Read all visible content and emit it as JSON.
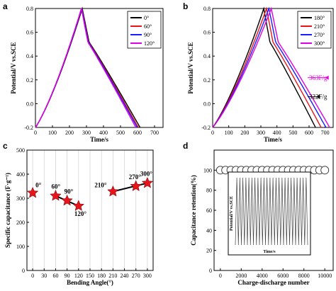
{
  "chart_data": [
    {
      "panel": "a",
      "type": "line",
      "xlabel": "Time/s",
      "ylabel": "Potential/V vs.SCE",
      "xlim": [
        0,
        750
      ],
      "ylim": [
        -0.2,
        0.8
      ],
      "xticks": [
        "0",
        "100",
        "200",
        "300",
        "400",
        "500",
        "600",
        "700"
      ],
      "yticks": [
        "-0.2",
        "0.0",
        "0.2",
        "0.4",
        "0.6",
        "0.8"
      ],
      "legend_position": "top-right",
      "series": [
        {
          "name": "0°",
          "color": "#000000",
          "peak": 275,
          "end": 615
        },
        {
          "name": "60°",
          "color": "#e8141c",
          "peak": 273,
          "end": 605
        },
        {
          "name": "90°",
          "color": "#1a1aff",
          "peak": 272,
          "end": 598
        },
        {
          "name": "120°",
          "color": "#e000e0",
          "peak": 270,
          "end": 590
        }
      ]
    },
    {
      "panel": "b",
      "type": "line",
      "xlabel": "Time/s",
      "ylabel": "Potential/V vs.SCE",
      "xlim": [
        0,
        750
      ],
      "ylim": [
        -0.2,
        0.8
      ],
      "xticks": [
        "0",
        "100",
        "200",
        "300",
        "400",
        "500",
        "600",
        "700"
      ],
      "yticks": [
        "-0.2",
        "0.0",
        "0.2",
        "0.4",
        "0.6",
        "0.8"
      ],
      "legend_position": "top-right",
      "series": [
        {
          "name": "180°",
          "color": "#000000",
          "peak": 318,
          "end": 640
        },
        {
          "name": "210°",
          "color": "#e8141c",
          "peak": 335,
          "end": 675
        },
        {
          "name": "270°",
          "color": "#1a1aff",
          "peak": 350,
          "end": 705
        },
        {
          "name": "300°",
          "color": "#e000e0",
          "peak": 365,
          "end": 728
        }
      ],
      "annotations": [
        {
          "text": "363F/g",
          "color": "#e000e0",
          "y": 0.2
        },
        {
          "text": "322F/g",
          "color": "#000000",
          "y": 0.04
        }
      ]
    },
    {
      "panel": "c",
      "type": "scatter",
      "xlabel": "Bending Angle(°)",
      "ylabel": "Specific capacitance (F·g⁻¹)",
      "xlim": [
        -15,
        315
      ],
      "ylim": [
        0,
        500
      ],
      "xticks": [
        "0",
        "30",
        "60",
        "90",
        "120",
        "150",
        "180",
        "210",
        "240",
        "270",
        "300"
      ],
      "yticks": [
        "0",
        "100",
        "200",
        "300",
        "400",
        "500"
      ],
      "grid": "vertical",
      "marker_color": "#e8141c",
      "points": [
        {
          "x": 0,
          "y": 322,
          "label": "0°"
        },
        {
          "x": 60,
          "y": 310,
          "label": "60°"
        },
        {
          "x": 90,
          "y": 290,
          "label": "90°"
        },
        {
          "x": 120,
          "y": 268,
          "label": "120°"
        },
        {
          "x": 210,
          "y": 328,
          "label": "210°"
        },
        {
          "x": 270,
          "y": 350,
          "label": "270°"
        },
        {
          "x": 300,
          "y": 363,
          "label": "300°"
        }
      ]
    },
    {
      "panel": "d",
      "type": "scatter",
      "xlabel": "Charge-discharge number",
      "ylabel": "Capacitance retention(%)",
      "xlim": [
        -600,
        10800
      ],
      "ylim": [
        0,
        120
      ],
      "xticks": [
        "0",
        "2000",
        "4000",
        "6000",
        "8000",
        "10000"
      ],
      "yticks": [
        "0",
        "20",
        "40",
        "60",
        "80",
        "100"
      ],
      "points_x_step": 500,
      "points_y": 100,
      "inset": {
        "xlabel": "Time/s",
        "ylabel": "Potential/V vs.SCE",
        "cycles": 24
      }
    }
  ]
}
